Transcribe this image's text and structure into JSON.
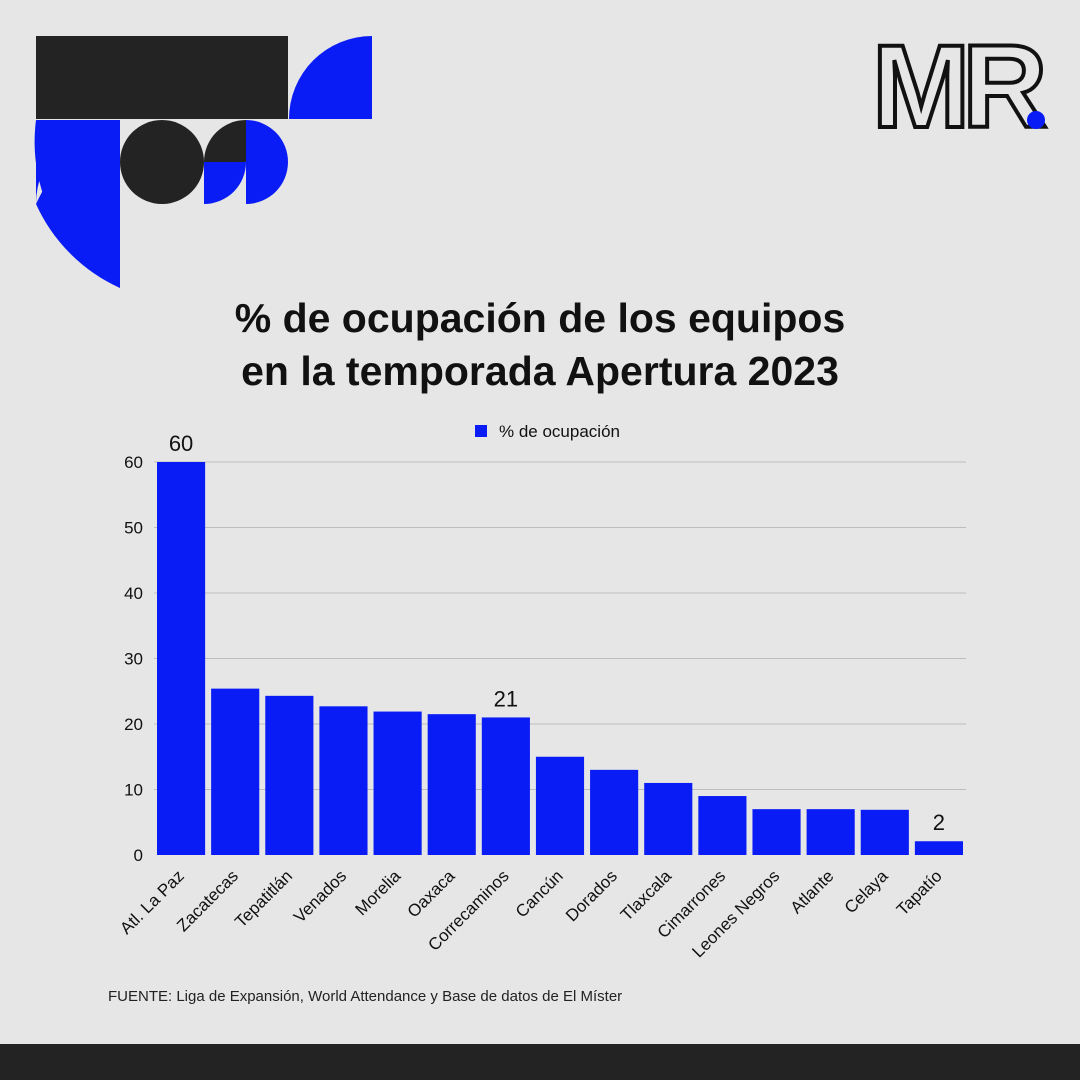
{
  "colors": {
    "accent": "#0a1cf5",
    "dark": "#232323",
    "background": "#e6e6e6",
    "grid": "#bdbdbd"
  },
  "logo": {
    "text": "MR"
  },
  "header": {
    "title_line1": "% de ocupación de los equipos",
    "title_line2": "en la temporada Apertura 2023"
  },
  "chart_data": {
    "type": "bar",
    "title": "% de ocupación de los equipos en la temporada Apertura 2023",
    "xlabel": "",
    "ylabel": "",
    "legend": {
      "position": "top-center",
      "entries": [
        "% de ocupación"
      ]
    },
    "categories": [
      "Atl. La Paz",
      "Zacatecas",
      "Tepatitlán",
      "Venados",
      "Morelia",
      "Oaxaca",
      "Correcaminos",
      "Cancún",
      "Dorados",
      "Tlaxcala",
      "Cimarrones",
      "Leones Negros",
      "Atlante",
      "Celaya",
      "Tapatío"
    ],
    "series": [
      {
        "name": "% de ocupación",
        "values": [
          60,
          25.4,
          24.3,
          22.7,
          21.9,
          21.5,
          21,
          15,
          13,
          11,
          9,
          7,
          7,
          6.9,
          2.1
        ]
      }
    ],
    "data_labels": [
      {
        "index": 0,
        "text": "60"
      },
      {
        "index": 6,
        "text": "21"
      },
      {
        "index": 14,
        "text": "2"
      }
    ],
    "ylim": [
      0,
      60
    ],
    "yticks": [
      0,
      10,
      20,
      30,
      40,
      50,
      60
    ],
    "grid": true
  },
  "footer": {
    "source": "FUENTE: Liga de Expansión, World Attendance y Base de datos de El Míster"
  }
}
